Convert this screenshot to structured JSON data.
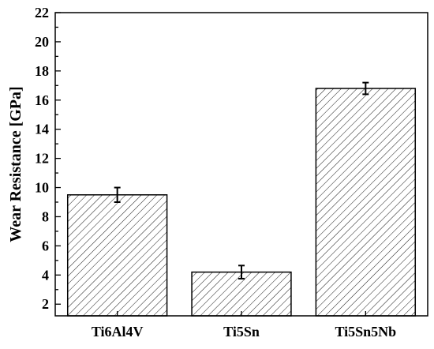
{
  "chart_data": {
    "type": "bar",
    "title": "",
    "xlabel": "",
    "ylabel": "Wear Resistance [GPa]",
    "categories": [
      "Ti6Al4V",
      "Ti5Sn",
      "Ti5Sn5Nb"
    ],
    "values": [
      9.5,
      4.2,
      16.8
    ],
    "errors": [
      0.5,
      0.45,
      0.4
    ],
    "ylim": [
      1.2,
      22
    ],
    "yticks": [
      2,
      4,
      6,
      8,
      10,
      12,
      14,
      16,
      18,
      20,
      22
    ],
    "yminor_step": 1,
    "bar_fill": "hatched",
    "colors": {
      "stroke": "#000000",
      "fill": "#ffffff"
    },
    "grid": false,
    "legend": "none"
  }
}
